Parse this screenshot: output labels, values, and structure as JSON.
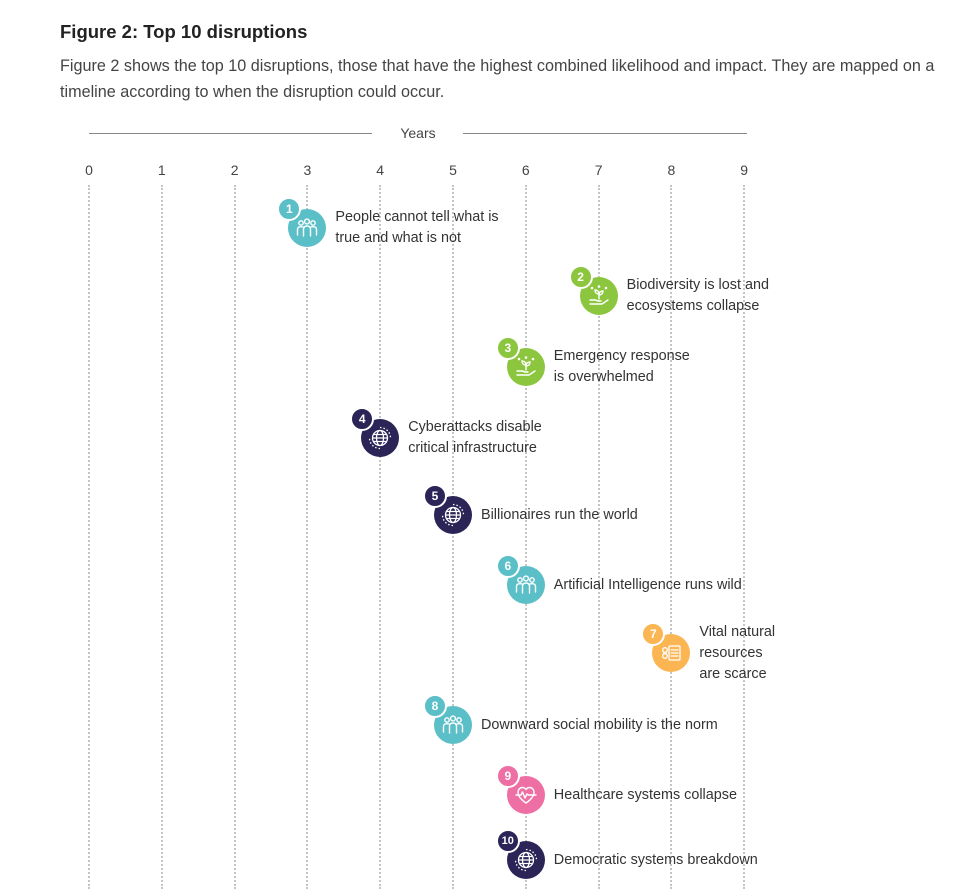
{
  "heading": "Figure 2: Top 10 disruptions",
  "intro": "Figure 2 shows the top 10 disruptions, those that have the highest combined likelihood and impact. They are mapped on a timeline according to when the disruption could occur.",
  "chart_data": {
    "type": "timeline",
    "axis_title": "Years",
    "ticks": [
      "0",
      "1",
      "2",
      "3",
      "4",
      "5",
      "6",
      "7",
      "8",
      "9"
    ],
    "items": [
      {
        "rank": "1",
        "year": 3,
        "label_lines": [
          "People cannot tell what is",
          "true and what is not"
        ],
        "color": "#5bbfc7",
        "icon": "people-icon"
      },
      {
        "rank": "2",
        "year": 7,
        "label_lines": [
          "Biodiversity is lost and",
          "ecosystems collapse"
        ],
        "color": "#8cc63f",
        "icon": "plant-in-hand-icon"
      },
      {
        "rank": "3",
        "year": 6,
        "label_lines": [
          "Emergency response",
          "is overwhelmed"
        ],
        "color": "#8cc63f",
        "icon": "plant-in-hand-icon"
      },
      {
        "rank": "4",
        "year": 4,
        "label_lines": [
          "Cyberattacks disable",
          "critical infrastructure"
        ],
        "color": "#2b2457",
        "icon": "globe-icon"
      },
      {
        "rank": "5",
        "year": 5,
        "label_lines": [
          "Billionaires run the world"
        ],
        "color": "#2b2457",
        "icon": "globe-icon"
      },
      {
        "rank": "6",
        "year": 6,
        "label_lines": [
          "Artificial Intelligence runs wild"
        ],
        "color": "#5bbfc7",
        "icon": "people-icon"
      },
      {
        "rank": "7",
        "year": 8,
        "label_lines": [
          "Vital natural",
          "resources",
          "are scarce"
        ],
        "color": "#fbb553",
        "icon": "resources-icon"
      },
      {
        "rank": "8",
        "year": 5,
        "label_lines": [
          "Downward social mobility is the norm"
        ],
        "color": "#5bbfc7",
        "icon": "people-icon"
      },
      {
        "rank": "9",
        "year": 6,
        "label_lines": [
          "Healthcare systems collapse"
        ],
        "color": "#ee6fa3",
        "icon": "heartbeat-icon"
      },
      {
        "rank": "10",
        "year": 6,
        "label_lines": [
          "Democratic systems breakdown"
        ],
        "color": "#2b2457",
        "icon": "globe-icon"
      }
    ]
  }
}
